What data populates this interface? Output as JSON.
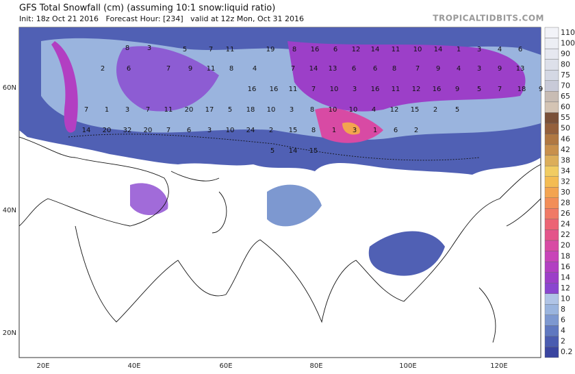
{
  "header": {
    "title": "GFS Total Snowfall (cm) (assuming 10:1 snow:liquid ratio)",
    "subtitle": "Init: 18z Oct 21 2016   Forecast Hour: [234]   valid at 12z Mon, Oct 31 2016",
    "watermark": "TROPICALTIDBITS.COM"
  },
  "axes": {
    "lat_labels": [
      "60N",
      "40N",
      "20N"
    ],
    "lon_labels": [
      "20E",
      "40E",
      "60E",
      "80E",
      "100E",
      "120E"
    ]
  },
  "colorbar": {
    "levels": [
      0.2,
      2,
      4,
      6,
      8,
      10,
      12,
      14,
      16,
      18,
      20,
      22,
      24,
      26,
      28,
      30,
      32,
      34,
      38,
      42,
      46,
      50,
      55,
      60,
      65,
      70,
      75,
      80,
      90,
      100,
      110
    ],
    "colors": [
      "#3a45a0",
      "#4a5cb0",
      "#5f78c0",
      "#7d98d0",
      "#9ab4de",
      "#b0c4e6",
      "#8a46cf",
      "#9c3fc8",
      "#b23fc2",
      "#c844b8",
      "#d84aa4",
      "#e4548a",
      "#ec6474",
      "#f07a66",
      "#f28e58",
      "#f3a450",
      "#f4bc52",
      "#f1cc62",
      "#dcae5a",
      "#c8904c",
      "#b07842",
      "#94603c",
      "#7a5038",
      "#d4c4b4",
      "#c8bcb4",
      "#c8cad8",
      "#d4d8e4",
      "#dde0ea",
      "#e6e8f0",
      "#eceef4",
      "#f2f3f8"
    ]
  },
  "map_labels": [
    "3",
    "8",
    "5",
    "7",
    "11",
    "19",
    "8",
    "16",
    "6",
    "12",
    "14",
    "11",
    "10",
    "14",
    "1",
    "3",
    "4",
    "6",
    "2",
    "6",
    "7",
    "9",
    "11",
    "8",
    "4",
    "7",
    "14",
    "13",
    "6",
    "6",
    "8",
    "7",
    "9",
    "4",
    "3",
    "9",
    "13",
    "16",
    "16",
    "11",
    "7",
    "10",
    "3",
    "16",
    "11",
    "12",
    "16",
    "9",
    "5",
    "7",
    "18",
    "9",
    "7",
    "1",
    "3",
    "7",
    "11",
    "20",
    "17",
    "5",
    "18",
    "10",
    "3",
    "8",
    "10",
    "10",
    "4",
    "12",
    "15",
    "2",
    "5",
    "14",
    "20",
    "32",
    "20",
    "7",
    "6",
    "3",
    "10",
    "24",
    "2",
    "15",
    "8",
    "1",
    "3",
    "1",
    "6",
    "2",
    "5",
    "14",
    "15"
  ]
}
